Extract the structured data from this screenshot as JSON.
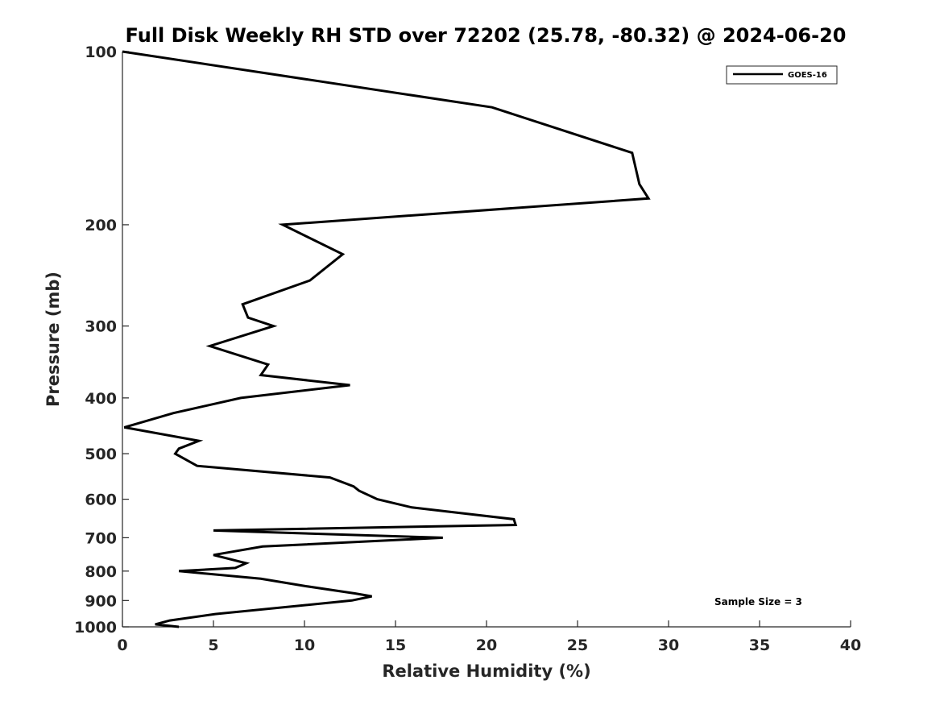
{
  "chart_data": {
    "type": "line",
    "title": "Full Disk Weekly RH STD over 72202 (25.78, -80.32) @ 2024-06-20",
    "xlabel": "Relative Humidity (%)",
    "ylabel": "Pressure (mb)",
    "xlim": [
      0,
      40
    ],
    "ylim": [
      100,
      1000
    ],
    "yscale": "log",
    "yreversed": true,
    "x_ticks": [
      0,
      5,
      10,
      15,
      20,
      25,
      30,
      35,
      40
    ],
    "y_ticks": [
      100,
      200,
      300,
      400,
      500,
      600,
      700,
      800,
      900,
      1000
    ],
    "grid": false,
    "legend_position": "top-right",
    "annotation": "Sample Size = 3",
    "series": [
      {
        "name": "GOES-16",
        "color": "#000000",
        "points": [
          [
            0.0,
            100
          ],
          [
            20.3,
            125
          ],
          [
            28.0,
            150
          ],
          [
            28.4,
            170
          ],
          [
            28.9,
            180
          ],
          [
            8.8,
            200
          ],
          [
            12.1,
            225
          ],
          [
            10.3,
            250
          ],
          [
            6.6,
            275
          ],
          [
            6.9,
            290
          ],
          [
            8.3,
            300
          ],
          [
            4.8,
            325
          ],
          [
            8.0,
            350
          ],
          [
            7.6,
            365
          ],
          [
            12.5,
            380
          ],
          [
            6.5,
            400
          ],
          [
            2.8,
            425
          ],
          [
            0.1,
            450
          ],
          [
            4.2,
            475
          ],
          [
            3.1,
            490
          ],
          [
            2.9,
            500
          ],
          [
            4.1,
            525
          ],
          [
            11.4,
            550
          ],
          [
            12.7,
            570
          ],
          [
            13.0,
            580
          ],
          [
            14.0,
            600
          ],
          [
            15.9,
            620
          ],
          [
            21.5,
            650
          ],
          [
            21.6,
            665
          ],
          [
            5.0,
            680
          ],
          [
            17.6,
            700
          ],
          [
            7.7,
            725
          ],
          [
            5.0,
            750
          ],
          [
            6.8,
            775
          ],
          [
            6.2,
            790
          ],
          [
            3.1,
            800
          ],
          [
            7.6,
            825
          ],
          [
            10.1,
            850
          ],
          [
            12.8,
            875
          ],
          [
            13.7,
            885
          ],
          [
            12.6,
            900
          ],
          [
            5.1,
            950
          ],
          [
            2.6,
            975
          ],
          [
            1.8,
            990
          ],
          [
            3.1,
            1000
          ]
        ]
      }
    ]
  }
}
